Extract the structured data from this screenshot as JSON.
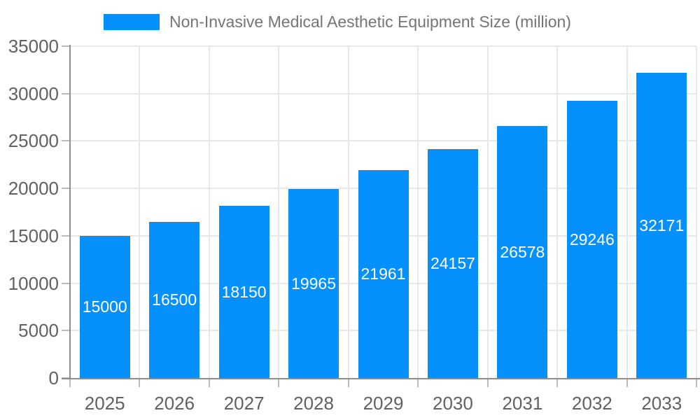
{
  "chart_data": {
    "type": "bar",
    "title": "Non-Invasive Medical Aesthetic Equipment Size (million)",
    "legend": {
      "position": "top",
      "series_label": "Non-Invasive Medical Aesthetic Equipment Size (million)"
    },
    "categories": [
      "2025",
      "2026",
      "2027",
      "2028",
      "2029",
      "2030",
      "2031",
      "2032",
      "2033"
    ],
    "values": [
      15000,
      16500,
      18150,
      19965,
      21961,
      24157,
      26578,
      29246,
      32171
    ],
    "data_labels_visible": true,
    "xlabel": "",
    "ylabel": "",
    "ylim": [
      0,
      35000
    ],
    "yticks": [
      0,
      5000,
      10000,
      15000,
      20000,
      25000,
      30000,
      35000
    ],
    "grid": true,
    "colors": {
      "bar": "#0590FB",
      "data_label": "#FFFFFF",
      "grid_line": "#E8E8E8",
      "axis_line": "#8E8E8E",
      "tick_mark": "#BBBBBB",
      "axis_label": "#616161",
      "legend_text": "#757575",
      "background": "#FFFFFF"
    }
  }
}
